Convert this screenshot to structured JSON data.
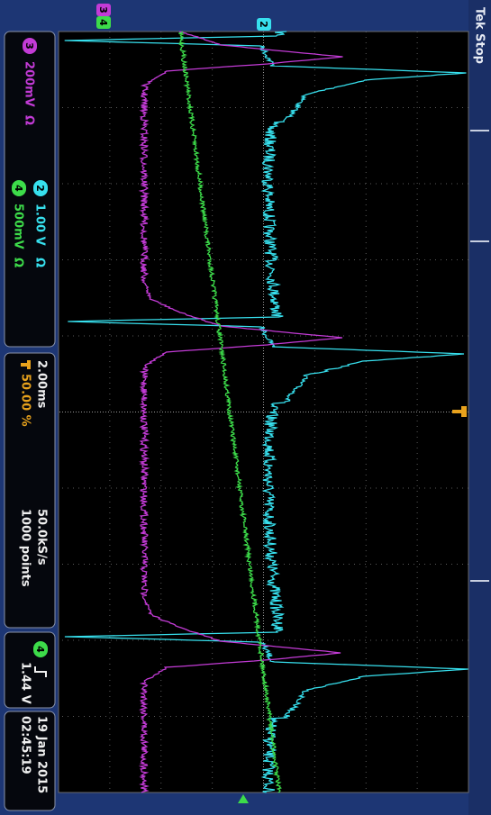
{
  "status": "Tek Stop",
  "ground_markers": [
    {
      "label": "4",
      "color": "#3ddc4a"
    },
    {
      "label": "3",
      "color": "#c33bd6"
    },
    {
      "label": "2",
      "color": "#37e0ee"
    }
  ],
  "channels": [
    {
      "number": "3",
      "scale": "200mV",
      "coupling": "Ω",
      "color": "#c33bd6"
    },
    {
      "number": "2",
      "scale": "1.00 V",
      "coupling": "Ω",
      "color": "#37e0ee"
    },
    {
      "number": "4",
      "scale": "500mV",
      "coupling": "Ω",
      "color": "#3ddc4a"
    }
  ],
  "horizontal": {
    "time_per_div": "2.00ms",
    "trigger_position": "50.00 %"
  },
  "acquisition": {
    "sample_rate": "50.0kS/s",
    "record_length": "1000 points"
  },
  "trigger": {
    "source": "4",
    "level": "1.44 V"
  },
  "timestamp": {
    "date": "19 Jan 2015",
    "time": "02:45:19"
  }
}
